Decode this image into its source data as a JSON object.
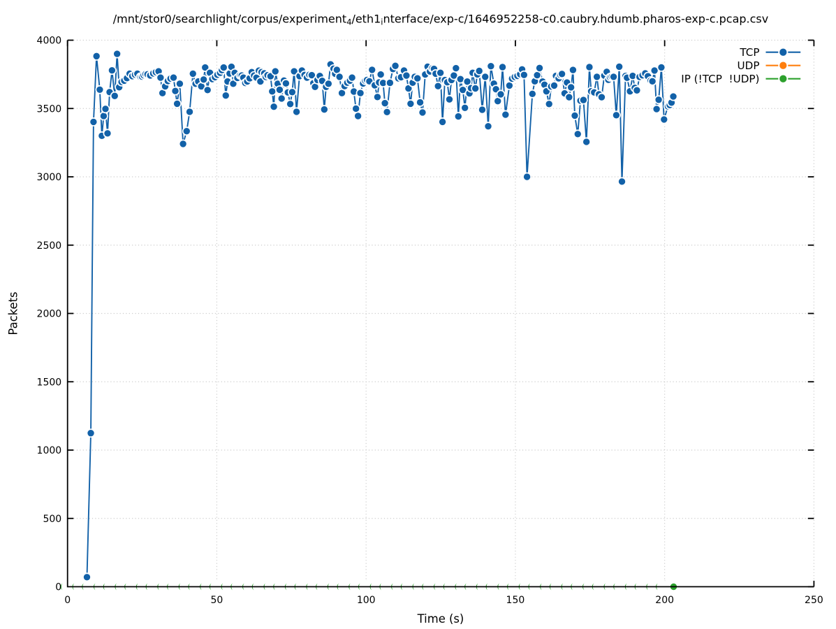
{
  "title": {
    "text": "/mnt/stor0/searchlight/corpus/experiment_4/eth1_interface/exp-c/1646952258-c0.caubry.hdumb.pharos-exp-c.pcap.csv",
    "parts": [
      {
        "t": "/mnt/stor0/searchlight/corpus/experiment",
        "sub": false
      },
      {
        "t": "4",
        "sub": true
      },
      {
        "t": "/eth1",
        "sub": false
      },
      {
        "t": "i",
        "sub": true
      },
      {
        "t": "nterface/exp-c/1646952258-c0.caubry.hdumb.pharos-exp-c.pcap.csv",
        "sub": false
      }
    ]
  },
  "axes": {
    "x": {
      "label": "Time (s)",
      "min": 0,
      "max": 250,
      "ticks": [
        0,
        50,
        100,
        150,
        200,
        250
      ]
    },
    "y": {
      "label": "Packets",
      "min": 0,
      "max": 4000,
      "ticks": [
        0,
        500,
        1000,
        1500,
        2000,
        2500,
        3000,
        3500,
        4000
      ]
    }
  },
  "legend": {
    "entries": [
      {
        "label": "TCP",
        "color": "#1261a8"
      },
      {
        "label": "UDP",
        "color": "#ff7f0e"
      },
      {
        "label": "IP (!TCP  !UDP)",
        "color": "#2ca02c"
      }
    ]
  },
  "colors": {
    "tcp": "#1261a8",
    "udp": "#ff7f0e",
    "ip": "#2ca02c",
    "grid": "#cbcbcb",
    "axis": "#000000",
    "background": "#ffffff",
    "marker_edge": "#ffffff"
  },
  "chart_data": {
    "type": "line",
    "title": "/mnt/stor0/searchlight/corpus/experiment_4/eth1_interface/exp-c/1646952258-c0.caubry.hdumb.pharos-exp-c.pcap.csv",
    "xlabel": "Time (s)",
    "ylabel": "Packets",
    "xlim": [
      0,
      250
    ],
    "ylim": [
      0,
      4000
    ],
    "grid": "dotted",
    "legend_position": "upper right",
    "series": [
      {
        "name": "TCP",
        "color": "#1261a8",
        "marker": "circle",
        "points": [
          [
            6.5,
            70
          ],
          [
            7.8,
            1124
          ],
          [
            8.7,
            3402
          ],
          [
            9.7,
            3883
          ],
          [
            10.8,
            3638
          ],
          [
            11.5,
            3300
          ],
          [
            12.1,
            3445
          ],
          [
            12.7,
            3497
          ],
          [
            13.4,
            3318
          ],
          [
            14.1,
            3620
          ],
          [
            14.9,
            3779
          ],
          [
            15.8,
            3592
          ],
          [
            16.6,
            3900
          ],
          [
            17.3,
            3656
          ],
          [
            18.1,
            3694
          ],
          [
            19,
            3704
          ],
          [
            19.9,
            3722
          ],
          [
            20.8,
            3755
          ],
          [
            21.7,
            3737
          ],
          [
            22.6,
            3748
          ],
          [
            23.4,
            3755
          ],
          [
            24.4,
            3732
          ],
          [
            24.95,
            3734
          ],
          [
            25.5,
            3744
          ],
          [
            26.15,
            3752
          ],
          [
            26.8,
            3750
          ],
          [
            27.7,
            3742
          ],
          [
            28.7,
            3757
          ],
          [
            29.6,
            3766
          ],
          [
            30.5,
            3772
          ],
          [
            31.15,
            3726
          ],
          [
            31.8,
            3613
          ],
          [
            32.7,
            3662
          ],
          [
            33.6,
            3701
          ],
          [
            34.5,
            3719
          ],
          [
            35.5,
            3726
          ],
          [
            36.1,
            3628
          ],
          [
            36.7,
            3535
          ],
          [
            37.6,
            3681
          ],
          [
            38.7,
            3241
          ],
          [
            39.9,
            3334
          ],
          [
            40.9,
            3476
          ],
          [
            42,
            3755
          ],
          [
            42.9,
            3681
          ],
          [
            43.8,
            3698
          ],
          [
            44.8,
            3662
          ],
          [
            45.6,
            3712
          ],
          [
            46.1,
            3800
          ],
          [
            46.9,
            3635
          ],
          [
            47.7,
            3761
          ],
          [
            48.5,
            3715
          ],
          [
            49.4,
            3729
          ],
          [
            50.2,
            3747
          ],
          [
            51.1,
            3761
          ],
          [
            51.7,
            3781
          ],
          [
            52.3,
            3800
          ],
          [
            53,
            3595
          ],
          [
            53.6,
            3698
          ],
          [
            54.3,
            3756
          ],
          [
            54.9,
            3805
          ],
          [
            55.5,
            3681
          ],
          [
            56,
            3761
          ],
          [
            56.9,
            3724
          ],
          [
            57.8,
            3743
          ],
          [
            58.35,
            3741
          ],
          [
            58.9,
            3726
          ],
          [
            59.55,
            3687
          ],
          [
            60.2,
            3698
          ],
          [
            61,
            3721
          ],
          [
            61.7,
            3766
          ],
          [
            62.5,
            3741
          ],
          [
            63.3,
            3726
          ],
          [
            64.1,
            3777
          ],
          [
            64.6,
            3698
          ],
          [
            65,
            3766
          ],
          [
            65.9,
            3757
          ],
          [
            66.4,
            3731
          ],
          [
            67,
            3744
          ],
          [
            68,
            3736
          ],
          [
            68.55,
            3625
          ],
          [
            69.1,
            3513
          ],
          [
            69.6,
            3772
          ],
          [
            70.4,
            3681
          ],
          [
            71.05,
            3637
          ],
          [
            71.7,
            3573
          ],
          [
            72.5,
            3704
          ],
          [
            73.15,
            3684
          ],
          [
            73.8,
            3618
          ],
          [
            74.6,
            3533
          ],
          [
            75.25,
            3620
          ],
          [
            75.9,
            3772
          ],
          [
            76.7,
            3476
          ],
          [
            77.7,
            3737
          ],
          [
            78.5,
            3778
          ],
          [
            79.4,
            3746
          ],
          [
            80.2,
            3726
          ],
          [
            81,
            3747
          ],
          [
            81.8,
            3744
          ],
          [
            82.35,
            3685
          ],
          [
            82.9,
            3658
          ],
          [
            83.7,
            3709
          ],
          [
            84.5,
            3738
          ],
          [
            85.3,
            3702
          ],
          [
            86,
            3493
          ],
          [
            86.6,
            3658
          ],
          [
            87.4,
            3681
          ],
          [
            88.1,
            3823
          ],
          [
            89.1,
            3791
          ],
          [
            89.65,
            3754
          ],
          [
            90.2,
            3783
          ],
          [
            91.1,
            3732
          ],
          [
            91.9,
            3613
          ],
          [
            92.8,
            3664
          ],
          [
            93.7,
            3689
          ],
          [
            94.6,
            3704
          ],
          [
            95.3,
            3726
          ],
          [
            95.9,
            3624
          ],
          [
            96.6,
            3499
          ],
          [
            97.3,
            3445
          ],
          [
            98.1,
            3613
          ],
          [
            99,
            3683
          ],
          [
            99.7,
            3704
          ],
          [
            100.3,
            3709
          ],
          [
            101.1,
            3699
          ],
          [
            102,
            3783
          ],
          [
            102.9,
            3670
          ],
          [
            103.8,
            3584
          ],
          [
            104.35,
            3691
          ],
          [
            104.9,
            3749
          ],
          [
            105.7,
            3687
          ],
          [
            106.3,
            3539
          ],
          [
            107,
            3474
          ],
          [
            108,
            3688
          ],
          [
            109,
            3789
          ],
          [
            109.8,
            3812
          ],
          [
            110.8,
            3721
          ],
          [
            111.7,
            3729
          ],
          [
            112.7,
            3778
          ],
          [
            113.5,
            3741
          ],
          [
            114.2,
            3647
          ],
          [
            114.9,
            3535
          ],
          [
            115.6,
            3689
          ],
          [
            116.3,
            3732
          ],
          [
            117.2,
            3721
          ],
          [
            118.1,
            3545
          ],
          [
            118.9,
            3471
          ],
          [
            119.8,
            3749
          ],
          [
            120.6,
            3806
          ],
          [
            121.4,
            3771
          ],
          [
            122.2,
            3795
          ],
          [
            122.75,
            3790
          ],
          [
            123.3,
            3755
          ],
          [
            124.1,
            3664
          ],
          [
            124.9,
            3761
          ],
          [
            125.6,
            3402
          ],
          [
            126.4,
            3708
          ],
          [
            127.2,
            3692
          ],
          [
            127.9,
            3567
          ],
          [
            128.6,
            3709
          ],
          [
            129.4,
            3741
          ],
          [
            130.1,
            3795
          ],
          [
            130.9,
            3442
          ],
          [
            131.6,
            3715
          ],
          [
            132.4,
            3636
          ],
          [
            133.1,
            3505
          ],
          [
            133.9,
            3697
          ],
          [
            134.6,
            3611
          ],
          [
            135.15,
            3649
          ],
          [
            135.7,
            3761
          ],
          [
            136.6,
            3647
          ],
          [
            137.25,
            3750
          ],
          [
            137.9,
            3775
          ],
          [
            138.9,
            3491
          ],
          [
            139.9,
            3732
          ],
          [
            140.9,
            3370
          ],
          [
            141.8,
            3810
          ],
          [
            142.8,
            3682
          ],
          [
            143.5,
            3641
          ],
          [
            144.1,
            3554
          ],
          [
            145.1,
            3604
          ],
          [
            145.7,
            3803
          ],
          [
            146.7,
            3455
          ],
          [
            148,
            3668
          ],
          [
            148.9,
            3719
          ],
          [
            149.8,
            3731
          ],
          [
            150.7,
            3739
          ],
          [
            151.6,
            3751
          ],
          [
            152.25,
            3786
          ],
          [
            152.9,
            3746
          ],
          [
            153.9,
            3000
          ],
          [
            155.7,
            3607
          ],
          [
            156.5,
            3699
          ],
          [
            157.3,
            3744
          ],
          [
            158.1,
            3796
          ],
          [
            159.1,
            3697
          ],
          [
            159.75,
            3674
          ],
          [
            160.4,
            3626
          ],
          [
            161.3,
            3533
          ],
          [
            162,
            3661
          ],
          [
            163,
            3668
          ],
          [
            163.6,
            3739
          ],
          [
            164.5,
            3721
          ],
          [
            165.05,
            3746
          ],
          [
            165.6,
            3753
          ],
          [
            166.5,
            3611
          ],
          [
            167.3,
            3690
          ],
          [
            168,
            3583
          ],
          [
            168.65,
            3655
          ],
          [
            169.3,
            3782
          ],
          [
            169.9,
            3448
          ],
          [
            170.9,
            3313
          ],
          [
            171.8,
            3557
          ],
          [
            172.8,
            3562
          ],
          [
            173.8,
            3256
          ],
          [
            174.8,
            3803
          ],
          [
            175.4,
            3626
          ],
          [
            176.4,
            3618
          ],
          [
            177.3,
            3732
          ],
          [
            178,
            3604
          ],
          [
            178.9,
            3583
          ],
          [
            179.8,
            3741
          ],
          [
            180.6,
            3768
          ],
          [
            181.15,
            3710
          ],
          [
            181.7,
            3729
          ],
          [
            182.3,
            3733
          ],
          [
            182.9,
            3732
          ],
          [
            183.8,
            3451
          ],
          [
            184.8,
            3806
          ],
          [
            185.7,
            2965
          ],
          [
            186.9,
            3738
          ],
          [
            187.4,
            3725
          ],
          [
            188.4,
            3626
          ],
          [
            189.3,
            3739
          ],
          [
            190,
            3651
          ],
          [
            190.7,
            3633
          ],
          [
            191.6,
            3731
          ],
          [
            192.6,
            3743
          ],
          [
            193.5,
            3757
          ],
          [
            194.4,
            3736
          ],
          [
            195.3,
            3704
          ],
          [
            195.9,
            3699
          ],
          [
            196.6,
            3778
          ],
          [
            197.3,
            3496
          ],
          [
            198,
            3564
          ],
          [
            198.9,
            3801
          ],
          [
            199.8,
            3420
          ],
          [
            201.1,
            3516
          ],
          [
            201.7,
            3525
          ],
          [
            202.3,
            3543
          ],
          [
            202.9,
            3588
          ]
        ]
      },
      {
        "name": "UDP",
        "color": "#ff7f0e",
        "marker": "circle",
        "points": [],
        "note": "constant 0, hidden beneath IP series"
      },
      {
        "name": "IP (!TCP  !UDP)",
        "color": "#2ca02c",
        "marker": "circle",
        "constant_value": 0,
        "x_start": -2.3,
        "x_end": 203.0,
        "points": [
          [
            203.0,
            0
          ]
        ]
      }
    ]
  }
}
